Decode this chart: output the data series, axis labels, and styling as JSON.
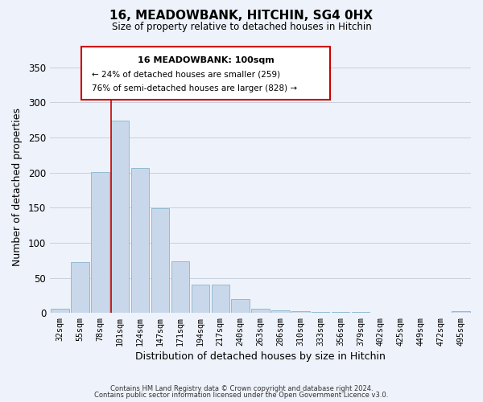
{
  "title": "16, MEADOWBANK, HITCHIN, SG4 0HX",
  "subtitle": "Size of property relative to detached houses in Hitchin",
  "xlabel": "Distribution of detached houses by size in Hitchin",
  "ylabel": "Number of detached properties",
  "categories": [
    "32sqm",
    "55sqm",
    "78sqm",
    "101sqm",
    "124sqm",
    "147sqm",
    "171sqm",
    "194sqm",
    "217sqm",
    "240sqm",
    "263sqm",
    "286sqm",
    "310sqm",
    "333sqm",
    "356sqm",
    "379sqm",
    "402sqm",
    "425sqm",
    "449sqm",
    "472sqm",
    "495sqm"
  ],
  "values": [
    6,
    72,
    201,
    274,
    206,
    149,
    74,
    40,
    40,
    20,
    6,
    4,
    2,
    1,
    1,
    1,
    0,
    0,
    0,
    0,
    2
  ],
  "bar_color": "#c8d8ea",
  "bar_edge_color": "#88b4cc",
  "red_line_index": 3,
  "red_line_label": "16 MEADOWBANK: 100sqm",
  "annotation_line1": "← 24% of detached houses are smaller (259)",
  "annotation_line2": "76% of semi-detached houses are larger (828) →",
  "annotation_box_edge": "#cc0000",
  "ylim": [
    0,
    360
  ],
  "yticks": [
    0,
    50,
    100,
    150,
    200,
    250,
    300,
    350
  ],
  "footer_line1": "Contains HM Land Registry data © Crown copyright and database right 2024.",
  "footer_line2": "Contains public sector information licensed under the Open Government Licence v3.0.",
  "bg_color": "#eef2fa",
  "grid_color": "#c8d0dc"
}
